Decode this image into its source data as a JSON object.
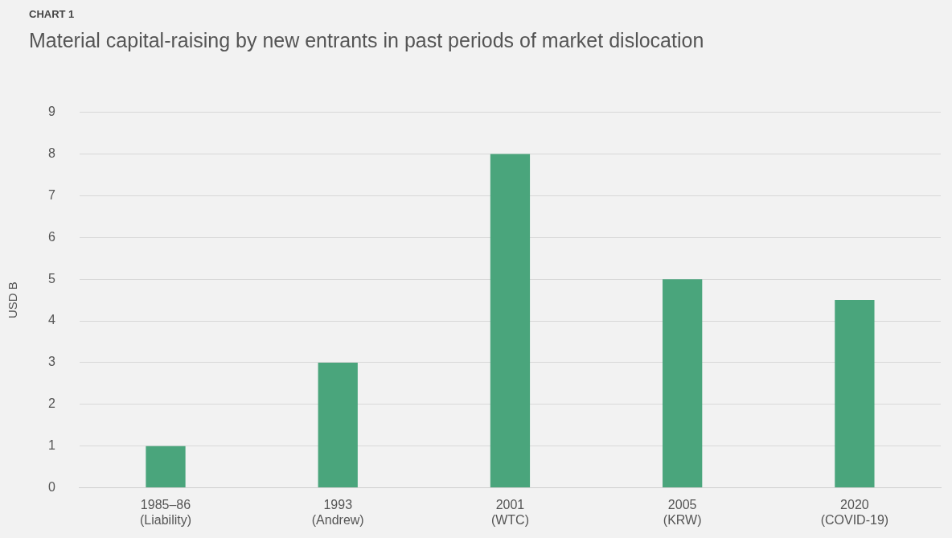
{
  "chart_data": {
    "type": "bar",
    "subtitle": "CHART 1",
    "title": "Material capital-raising by new entrants in past periods of market dislocation",
    "categories": [
      "1985–86\n(Liability)",
      "1993\n(Andrew)",
      "2001\n(WTC)",
      "2005\n(KRW)",
      "2020\n(COVID-19)"
    ],
    "values": [
      1,
      3,
      8,
      5,
      4.5
    ],
    "color": "#4aa57c",
    "ylabel": "USD B",
    "ylim": [
      0,
      9
    ],
    "yticks": [
      0,
      1,
      2,
      3,
      4,
      5,
      6,
      7,
      8,
      9
    ],
    "grid": "y",
    "legend": false
  }
}
